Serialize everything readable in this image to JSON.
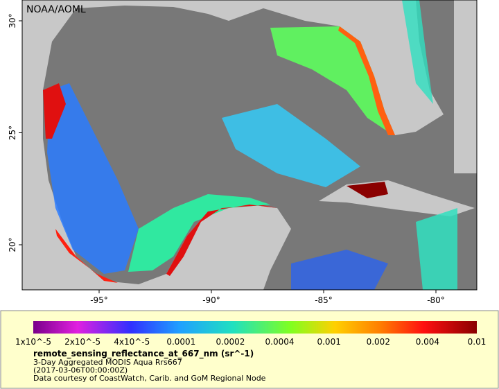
{
  "map": {
    "credit": "NOAA/AOML",
    "lon_labels": [
      "-95°",
      "-90°",
      "-85°",
      "-80°"
    ],
    "lat_labels": [
      "30°",
      "25°",
      "20°"
    ]
  },
  "legend": {
    "ticks": [
      "1x10^-5",
      "2x10^-5",
      "4x10^-5",
      "0.0001",
      "0.0002",
      "0.0004",
      "0.001",
      "0.002",
      "0.004",
      "0.01"
    ],
    "variable": "remote_sensing_reflectance_at_667_nm (sr^-1)",
    "lines": [
      "3-Day Aggregated MODIS Aqua Rrs667",
      "(2017-03-06T00:00:00Z)",
      "Data courtesy of CoastWatch, Carib. and GoM Regional Node"
    ]
  }
}
